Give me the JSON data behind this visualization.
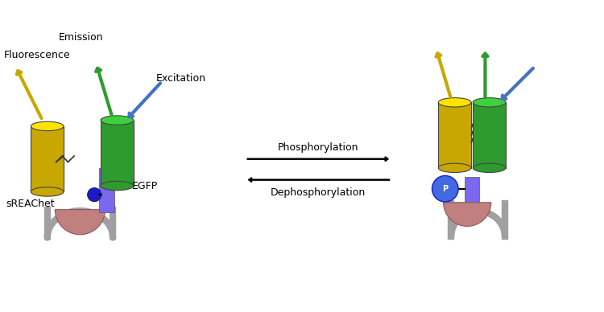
{
  "title": "",
  "background_color": "#ffffff",
  "colors": {
    "yellow_cylinder": "#C8A800",
    "green_cylinder": "#2E9B2E",
    "purple_linker": "#7B68EE",
    "gray_curve": "#A0A0A0",
    "pink_domain": "#C08080",
    "blue_ball": "#1A1ACD",
    "arrow_yellow": "#C8A800",
    "arrow_green": "#2E9B2E",
    "arrow_blue": "#4472C4",
    "black": "#000000",
    "white": "#ffffff",
    "zigzag": "#333333"
  },
  "labels": {
    "fluorescence": "Fluorescence",
    "emission": "Emission",
    "excitation": "Excitation",
    "sREAChet": "sREAChet",
    "EGFP": "EGFP",
    "phosphorylation": "Phosphorylation",
    "dephosphorylation": "Dephosphorylation",
    "P": "P"
  }
}
